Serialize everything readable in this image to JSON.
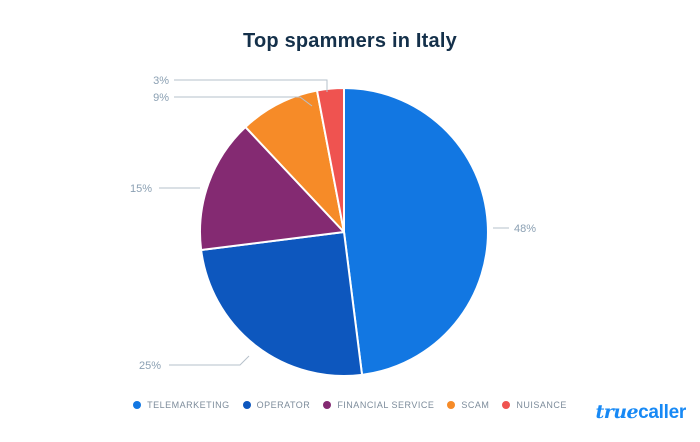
{
  "chart_data": {
    "type": "pie",
    "title": "Top spammers in Italy",
    "legend_position": "bottom",
    "start_angle_deg": 0,
    "direction": "clockwise",
    "slices": [
      {
        "label": "TELEMARKETING",
        "value": 48,
        "pct_label": "48%",
        "color": "#1277e2"
      },
      {
        "label": "OPERATOR",
        "value": 25,
        "pct_label": "25%",
        "color": "#0d57be"
      },
      {
        "label": "FINANCIAL SERVICE",
        "value": 15,
        "pct_label": "15%",
        "color": "#842a72"
      },
      {
        "label": "SCAM",
        "value": 9,
        "pct_label": "9%",
        "color": "#f68b28"
      },
      {
        "label": "NUISANCE",
        "value": 3,
        "pct_label": "3%",
        "color": "#ef5350"
      }
    ]
  },
  "branding": {
    "logo_part_script": "true",
    "logo_part_bold": "caller",
    "logo_color": "#1789f5"
  },
  "style": {
    "title_color": "#14304a",
    "pct_label_color": "#8ba0b3",
    "leader_line_color": "#b6c1cb",
    "legend_text_color": "#7d8c9b",
    "background": "#ffffff"
  }
}
